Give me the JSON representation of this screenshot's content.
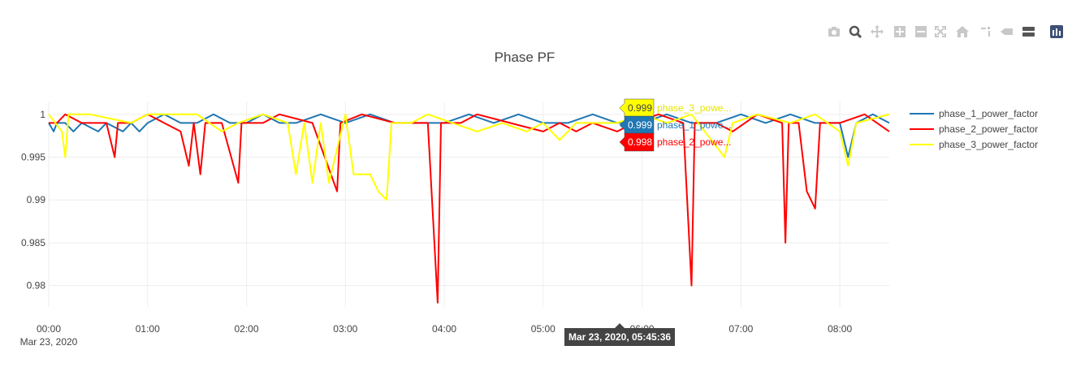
{
  "toolbar": {
    "buttons": [
      {
        "name": "camera-icon",
        "label": "Download plot as a png"
      },
      {
        "name": "zoom-icon",
        "label": "Zoom"
      },
      {
        "name": "pan-icon",
        "label": "Pan"
      },
      {
        "name": "zoom-in-icon",
        "label": "Zoom in"
      },
      {
        "name": "zoom-out-icon",
        "label": "Zoom out"
      },
      {
        "name": "autoscale-icon",
        "label": "Autoscale"
      },
      {
        "name": "home-icon",
        "label": "Reset axes"
      },
      {
        "name": "spike-lines-icon",
        "label": "Toggle Spike Lines"
      },
      {
        "name": "hover-closest-icon",
        "label": "Show closest data on hover"
      },
      {
        "name": "hover-compare-icon",
        "label": "Compare data on hover"
      },
      {
        "name": "plotly-logo-icon",
        "label": "Produced with Plotly"
      }
    ]
  },
  "chart_data": {
    "type": "line",
    "title": "Phase PF",
    "xlabel": "",
    "ylabel": "",
    "x_range": [
      "2020-03-23 00:00",
      "2020-03-23 08:30"
    ],
    "ylim": [
      0.9775,
      1.0015
    ],
    "x_ticks": [
      "00:00",
      "01:00",
      "02:00",
      "03:00",
      "04:00",
      "05:00",
      "06:00",
      "07:00",
      "08:00"
    ],
    "x_tick_sub": "Mar 23, 2020",
    "y_ticks": [
      "0.98",
      "0.985",
      "0.99",
      "0.995",
      "1"
    ],
    "y_tick_values": [
      0.98,
      0.985,
      0.99,
      0.995,
      1.0
    ],
    "grid": true,
    "legend_placement": "right",
    "series": [
      {
        "name": "phase_1_power_factor",
        "color": "#1f77b4",
        "points": [
          [
            "00:00",
            0.999
          ],
          [
            "00:03",
            0.998
          ],
          [
            "00:05",
            0.999
          ],
          [
            "00:10",
            0.999
          ],
          [
            "00:15",
            0.998
          ],
          [
            "00:20",
            0.999
          ],
          [
            "00:30",
            0.998
          ],
          [
            "00:35",
            0.999
          ],
          [
            "00:45",
            0.998
          ],
          [
            "00:50",
            0.999
          ],
          [
            "00:55",
            0.998
          ],
          [
            "01:00",
            0.999
          ],
          [
            "01:10",
            1.0
          ],
          [
            "01:20",
            0.999
          ],
          [
            "01:30",
            0.999
          ],
          [
            "01:40",
            1.0
          ],
          [
            "01:50",
            0.999
          ],
          [
            "02:00",
            0.999
          ],
          [
            "02:10",
            1.0
          ],
          [
            "02:20",
            0.999
          ],
          [
            "02:30",
            0.999
          ],
          [
            "02:45",
            1.0
          ],
          [
            "03:00",
            0.999
          ],
          [
            "03:15",
            1.0
          ],
          [
            "03:30",
            0.999
          ],
          [
            "03:45",
            0.999
          ],
          [
            "04:00",
            0.999
          ],
          [
            "04:15",
            1.0
          ],
          [
            "04:30",
            0.999
          ],
          [
            "04:45",
            1.0
          ],
          [
            "05:00",
            0.999
          ],
          [
            "05:15",
            0.999
          ],
          [
            "05:30",
            1.0
          ],
          [
            "05:45",
            0.999
          ],
          [
            "06:00",
            0.999
          ],
          [
            "06:15",
            1.0
          ],
          [
            "06:30",
            0.999
          ],
          [
            "06:45",
            0.999
          ],
          [
            "07:00",
            1.0
          ],
          [
            "07:15",
            0.999
          ],
          [
            "07:30",
            1.0
          ],
          [
            "07:45",
            0.999
          ],
          [
            "08:00",
            0.999
          ],
          [
            "08:05",
            0.995
          ],
          [
            "08:10",
            0.999
          ],
          [
            "08:20",
            1.0
          ],
          [
            "08:30",
            0.999
          ]
        ]
      },
      {
        "name": "phase_2_power_factor",
        "color": "#ff0000",
        "points": [
          [
            "00:00",
            0.999
          ],
          [
            "00:05",
            0.999
          ],
          [
            "00:10",
            1.0
          ],
          [
            "00:20",
            0.999
          ],
          [
            "00:35",
            0.999
          ],
          [
            "00:40",
            0.995
          ],
          [
            "00:42",
            0.999
          ],
          [
            "00:50",
            0.999
          ],
          [
            "01:00",
            1.0
          ],
          [
            "01:10",
            0.999
          ],
          [
            "01:20",
            0.998
          ],
          [
            "01:25",
            0.994
          ],
          [
            "01:28",
            0.999
          ],
          [
            "01:32",
            0.993
          ],
          [
            "01:35",
            0.999
          ],
          [
            "01:45",
            0.999
          ],
          [
            "01:55",
            0.992
          ],
          [
            "01:57",
            0.999
          ],
          [
            "02:10",
            0.999
          ],
          [
            "02:20",
            1.0
          ],
          [
            "02:40",
            0.999
          ],
          [
            "02:55",
            0.991
          ],
          [
            "02:57",
            0.999
          ],
          [
            "03:10",
            1.0
          ],
          [
            "03:30",
            0.999
          ],
          [
            "03:50",
            0.999
          ],
          [
            "03:56",
            0.978
          ],
          [
            "03:58",
            0.999
          ],
          [
            "04:10",
            0.999
          ],
          [
            "04:20",
            1.0
          ],
          [
            "04:40",
            0.999
          ],
          [
            "05:00",
            0.998
          ],
          [
            "05:10",
            0.999
          ],
          [
            "05:20",
            0.998
          ],
          [
            "05:30",
            0.999
          ],
          [
            "05:45",
            0.998
          ],
          [
            "05:55",
            0.999
          ],
          [
            "06:10",
            1.0
          ],
          [
            "06:25",
            0.999
          ],
          [
            "06:30",
            0.98
          ],
          [
            "06:32",
            0.999
          ],
          [
            "06:45",
            0.999
          ],
          [
            "06:55",
            0.998
          ],
          [
            "07:10",
            1.0
          ],
          [
            "07:25",
            0.999
          ],
          [
            "07:27",
            0.985
          ],
          [
            "07:29",
            0.999
          ],
          [
            "07:35",
            0.999
          ],
          [
            "07:40",
            0.991
          ],
          [
            "07:45",
            0.989
          ],
          [
            "07:48",
            0.999
          ],
          [
            "08:00",
            0.999
          ],
          [
            "08:15",
            1.0
          ],
          [
            "08:30",
            0.998
          ]
        ]
      },
      {
        "name": "phase_3_power_factor",
        "color": "#ffff00",
        "points": [
          [
            "00:00",
            1.0
          ],
          [
            "00:08",
            0.998
          ],
          [
            "00:10",
            0.995
          ],
          [
            "00:12",
            1.0
          ],
          [
            "00:25",
            1.0
          ],
          [
            "00:50",
            0.999
          ],
          [
            "01:00",
            1.0
          ],
          [
            "01:30",
            1.0
          ],
          [
            "01:45",
            0.998
          ],
          [
            "01:55",
            0.999
          ],
          [
            "02:10",
            1.0
          ],
          [
            "02:25",
            0.999
          ],
          [
            "02:30",
            0.993
          ],
          [
            "02:35",
            0.999
          ],
          [
            "02:40",
            0.992
          ],
          [
            "02:45",
            0.999
          ],
          [
            "02:50",
            0.992
          ],
          [
            "03:00",
            1.0
          ],
          [
            "03:05",
            0.993
          ],
          [
            "03:15",
            0.993
          ],
          [
            "03:20",
            0.991
          ],
          [
            "03:25",
            0.99
          ],
          [
            "03:28",
            0.999
          ],
          [
            "03:40",
            0.999
          ],
          [
            "03:50",
            1.0
          ],
          [
            "04:05",
            0.999
          ],
          [
            "04:20",
            0.998
          ],
          [
            "04:35",
            0.999
          ],
          [
            "04:50",
            0.998
          ],
          [
            "05:00",
            0.999
          ],
          [
            "05:10",
            0.997
          ],
          [
            "05:20",
            0.999
          ],
          [
            "05:30",
            0.999
          ],
          [
            "05:45",
            0.999
          ],
          [
            "06:00",
            1.0
          ],
          [
            "06:15",
            0.999
          ],
          [
            "06:30",
            1.0
          ],
          [
            "06:50",
            0.995
          ],
          [
            "06:55",
            0.999
          ],
          [
            "07:10",
            1.0
          ],
          [
            "07:30",
            0.999
          ],
          [
            "07:45",
            1.0
          ],
          [
            "08:00",
            0.998
          ],
          [
            "08:05",
            0.994
          ],
          [
            "08:10",
            0.999
          ],
          [
            "08:30",
            1.0
          ]
        ]
      }
    ],
    "hover": {
      "x_label": "Mar 23, 2020, 05:45:36",
      "items": [
        {
          "series": "phase_3_power_factor",
          "value": "0.999",
          "name_shown": "phase_3_powe...",
          "bg": "#ffff00",
          "text_color": "#444444"
        },
        {
          "series": "phase_1_power_factor",
          "value": "0.999",
          "name_shown": "phase_1_powe...",
          "bg": "#1f77b4",
          "text_color": "#ffffff"
        },
        {
          "series": "phase_2_power_factor",
          "value": "0.998",
          "name_shown": "phase_2_powe...",
          "bg": "#ff0000",
          "text_color": "#ffffff"
        }
      ]
    }
  }
}
